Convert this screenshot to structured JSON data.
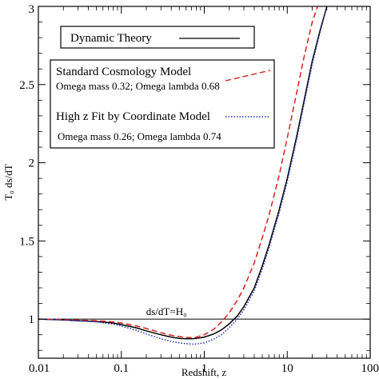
{
  "chart_data": {
    "type": "line",
    "xlabel": "Redshift, z",
    "ylabel": "T₀ ds/dT",
    "xscale": "log",
    "xlim": [
      0.01,
      100
    ],
    "ylim": [
      0.75,
      3
    ],
    "x_ticks": [
      0.01,
      0.1,
      1,
      10,
      100
    ],
    "x_tick_labels": [
      "0.01",
      "0.1",
      "1",
      "10",
      "100"
    ],
    "y_ticks": [
      1,
      1.5,
      2,
      2.5,
      3
    ],
    "y_tick_labels": [
      "1",
      "1.5",
      "2",
      "2.5",
      "3"
    ],
    "grid": false,
    "reference_line": {
      "y": 1,
      "label": "ds/dT=H₀",
      "label_at_x": 0.35
    },
    "series": [
      {
        "name": "Dynamic Theory",
        "color": "#000000",
        "style": "solid",
        "x": [
          0.01,
          0.02,
          0.03,
          0.05,
          0.08,
          0.1,
          0.15,
          0.2,
          0.3,
          0.4,
          0.5,
          0.6,
          0.7,
          0.8,
          1,
          1.3,
          1.6,
          2,
          2.5,
          3,
          4,
          5,
          6,
          8,
          10,
          13,
          16,
          20,
          25,
          30,
          35
        ],
        "y": [
          1.0,
          0.995,
          0.99,
          0.985,
          0.975,
          0.965,
          0.945,
          0.925,
          0.9,
          0.885,
          0.877,
          0.875,
          0.875,
          0.877,
          0.885,
          0.905,
          0.93,
          0.97,
          1.02,
          1.08,
          1.2,
          1.34,
          1.47,
          1.7,
          1.9,
          2.17,
          2.4,
          2.65,
          2.85,
          3.0,
          3.1
        ]
      },
      {
        "name": "Standard Cosmology Model",
        "color": "#d42020",
        "style": "dashed",
        "x": [
          0.01,
          0.02,
          0.03,
          0.05,
          0.08,
          0.1,
          0.15,
          0.2,
          0.3,
          0.4,
          0.5,
          0.6,
          0.7,
          0.8,
          1,
          1.3,
          1.6,
          2,
          2.5,
          3,
          4,
          5,
          6,
          8,
          10,
          13,
          16,
          20,
          25,
          30
        ],
        "y": [
          1.0,
          0.997,
          0.994,
          0.99,
          0.982,
          0.975,
          0.957,
          0.94,
          0.913,
          0.897,
          0.888,
          0.883,
          0.882,
          0.885,
          0.9,
          0.935,
          0.98,
          1.04,
          1.12,
          1.2,
          1.36,
          1.52,
          1.66,
          1.92,
          2.16,
          2.45,
          2.68,
          2.9,
          3.05,
          3.2
        ]
      },
      {
        "name": "High z Fit by Coordinate Model",
        "color": "#2030c0",
        "style": "dotted",
        "x": [
          0.01,
          0.02,
          0.03,
          0.05,
          0.08,
          0.1,
          0.15,
          0.2,
          0.3,
          0.4,
          0.5,
          0.6,
          0.7,
          0.8,
          1,
          1.3,
          1.6,
          2,
          2.5,
          3,
          4,
          5,
          6,
          8,
          10,
          13,
          16,
          20,
          25,
          30,
          35
        ],
        "y": [
          1.0,
          0.995,
          0.99,
          0.982,
          0.968,
          0.955,
          0.93,
          0.905,
          0.875,
          0.858,
          0.848,
          0.843,
          0.84,
          0.841,
          0.848,
          0.872,
          0.9,
          0.945,
          1.0,
          1.06,
          1.18,
          1.32,
          1.45,
          1.68,
          1.88,
          2.15,
          2.38,
          2.63,
          2.84,
          3.0,
          3.1
        ]
      }
    ],
    "legend": {
      "title_box": "Dynamic Theory",
      "standard_label": "Standard Cosmology Model",
      "standard_params": "Omega  mass 0.32; Omega lambda 0.68",
      "coordinate_label": "High z Fit by Coordinate Model",
      "coordinate_params": "Omega mass 0.26; Omega lambda 0.74"
    }
  }
}
